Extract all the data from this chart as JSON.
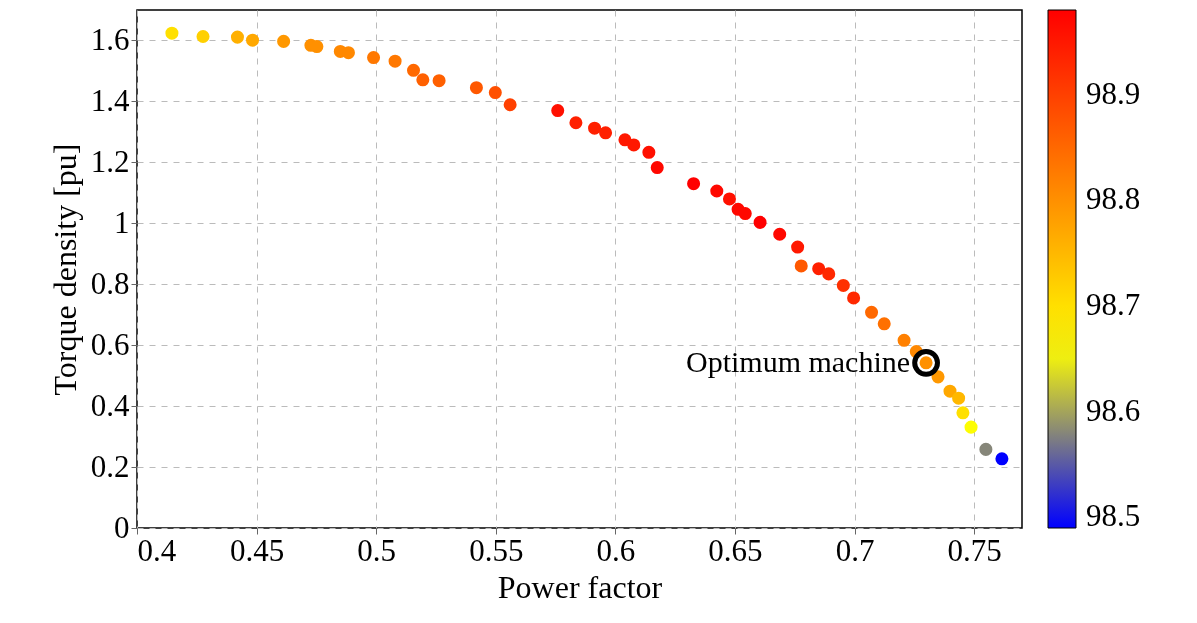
{
  "chart_data": {
    "type": "scatter",
    "xlabel": "Power factor",
    "ylabel": "Torque density [pu]",
    "x": [
      0.4146,
      0.4276,
      0.442,
      0.4483,
      0.4613,
      0.4727,
      0.4752,
      0.485,
      0.4884,
      0.4989,
      0.5079,
      0.5156,
      0.5195,
      0.5263,
      0.5419,
      0.5498,
      0.556,
      0.5759,
      0.5835,
      0.5913,
      0.5959,
      0.604,
      0.6077,
      0.614,
      0.6175,
      0.6327,
      0.6424,
      0.6477,
      0.6513,
      0.6543,
      0.6605,
      0.6687,
      0.6762,
      0.6777,
      0.685,
      0.6892,
      0.6953,
      0.6996,
      0.7071,
      0.7124,
      0.7207,
      0.7258,
      0.7299,
      0.7349,
      0.7399,
      0.7435,
      0.7453,
      0.7487,
      0.7549,
      0.7616
    ],
    "values": [
      1.624,
      1.613,
      1.611,
      1.601,
      1.597,
      1.584,
      1.58,
      1.564,
      1.56,
      1.544,
      1.532,
      1.502,
      1.471,
      1.468,
      1.445,
      1.429,
      1.389,
      1.37,
      1.33,
      1.312,
      1.297,
      1.274,
      1.257,
      1.233,
      1.183,
      1.13,
      1.106,
      1.08,
      1.046,
      1.032,
      1.003,
      0.964,
      0.922,
      0.86,
      0.851,
      0.834,
      0.796,
      0.755,
      0.708,
      0.67,
      0.616,
      0.579,
      0.542,
      0.496,
      0.449,
      0.426,
      0.378,
      0.331,
      0.258,
      0.227
    ],
    "cvalues": [
      98.7,
      98.72,
      98.76,
      98.77,
      98.79,
      98.8,
      98.8,
      98.81,
      98.81,
      98.83,
      98.83,
      98.85,
      98.86,
      98.86,
      98.87,
      98.88,
      98.9,
      98.96,
      98.94,
      98.94,
      98.94,
      98.95,
      98.95,
      98.96,
      98.97,
      98.98,
      98.97,
      98.96,
      98.97,
      98.97,
      98.98,
      98.97,
      98.95,
      98.87,
      98.94,
      98.93,
      98.92,
      98.93,
      98.85,
      98.84,
      98.82,
      98.81,
      98.8,
      98.79,
      98.77,
      98.75,
      98.7,
      98.66,
      98.58,
      98.49
    ],
    "xlim": [
      0.4,
      0.77
    ],
    "xticks": [
      0.4,
      0.45,
      0.5,
      0.55,
      0.6,
      0.65,
      0.7,
      0.75
    ],
    "ylim": [
      0,
      1.7
    ],
    "yticks": [
      0,
      0.2,
      0.4,
      0.6,
      0.8,
      1,
      1.2,
      1.4,
      1.6
    ],
    "clim": [
      98.49,
      98.98
    ],
    "cticks": [
      98.5,
      98.6,
      98.7,
      98.8,
      98.9
    ],
    "annotations": [
      {
        "text": "Optimum machine",
        "x": 0.7299,
        "y": 0.542
      }
    ],
    "grid": true
  }
}
